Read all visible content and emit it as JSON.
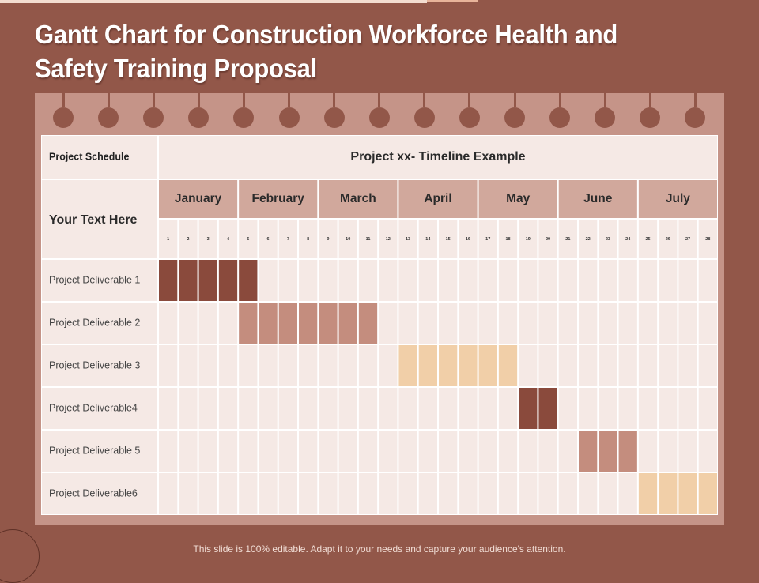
{
  "title": "Gantt Chart for Construction Workforce Health and Safety Training Proposal",
  "footer": "This slide is 100% editable. Adapt it to your needs and capture your audience's attention.",
  "colors": {
    "background": "#925749",
    "cell": "#f5e9e5",
    "header_cell": "#d1a89c",
    "gridline": "#ffffff",
    "bar_dark": "#8a4a3c",
    "bar_mid": "#c48d7e",
    "bar_light": "#f1cfa8"
  },
  "chart_data": {
    "type": "table",
    "title": "Project xx- Timeline Example",
    "corner_label": "Project Schedule",
    "side_label": "Your Text Here",
    "months": [
      {
        "name": "January",
        "weeks": [
          1,
          2,
          3,
          4
        ]
      },
      {
        "name": "February",
        "weeks": [
          5,
          6,
          7,
          8
        ]
      },
      {
        "name": "March",
        "weeks": [
          9,
          10,
          11,
          12
        ]
      },
      {
        "name": "April",
        "weeks": [
          13,
          14,
          15,
          16
        ]
      },
      {
        "name": "May",
        "weeks": [
          17,
          18,
          19,
          20
        ]
      },
      {
        "name": "June",
        "weeks": [
          21,
          22,
          23,
          24
        ]
      },
      {
        "name": "July",
        "weeks": [
          25,
          26,
          27,
          28
        ]
      }
    ],
    "tasks": [
      {
        "label": "Project Deliverable 1",
        "start": 1,
        "end": 5,
        "color": "#8a4a3c"
      },
      {
        "label": "Project Deliverable 2",
        "start": 5,
        "end": 11,
        "color": "#c48d7e"
      },
      {
        "label": "Project Deliverable 3",
        "start": 13,
        "end": 18,
        "color": "#f1cfa8"
      },
      {
        "label": "Project Deliverable4",
        "start": 19,
        "end": 20,
        "color": "#8a4a3c"
      },
      {
        "label": "Project Deliverable 5",
        "start": 22,
        "end": 24,
        "color": "#c48d7e"
      },
      {
        "label": "Project Deliverable6",
        "start": 25,
        "end": 28,
        "color": "#f1cfa8"
      }
    ]
  }
}
